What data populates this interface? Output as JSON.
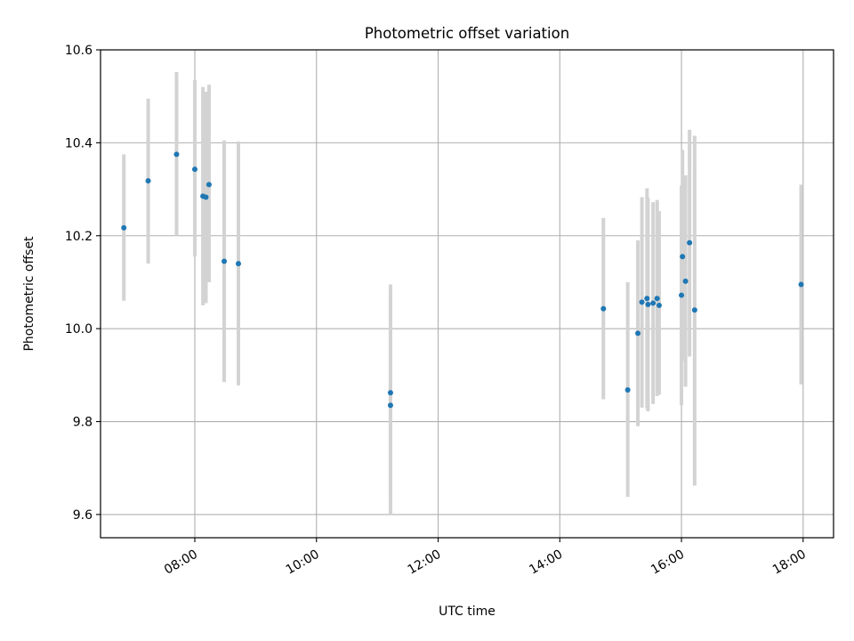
{
  "chart_data": {
    "type": "scatter",
    "title": "Photometric offset variation",
    "xlabel": "UTC time",
    "ylabel": "Photometric offset",
    "x_ticks": [
      "08:00",
      "10:00",
      "12:00",
      "14:00",
      "16:00",
      "18:00"
    ],
    "y_ticks": [
      "9.6",
      "9.8",
      "10.0",
      "10.2",
      "10.4",
      "10.6"
    ],
    "xlim": [
      "06:27",
      "18:30"
    ],
    "ylim": [
      9.55,
      10.6
    ],
    "grid": true,
    "legend": "none",
    "colors": {
      "points": "#1f77b4",
      "error_bars": "#d3d3d3",
      "grid": "#b0b0b0"
    },
    "series": [
      {
        "points": [
          {
            "x": "06:50",
            "y": 10.217,
            "lo": 10.06,
            "hi": 10.375
          },
          {
            "x": "07:14",
            "y": 10.318,
            "lo": 10.14,
            "hi": 10.495
          },
          {
            "x": "07:42",
            "y": 10.375,
            "lo": 10.2,
            "hi": 10.552
          },
          {
            "x": "08:00",
            "y": 10.343,
            "lo": 10.155,
            "hi": 10.535
          },
          {
            "x": "08:08",
            "y": 10.285,
            "lo": 10.05,
            "hi": 10.52
          },
          {
            "x": "08:11",
            "y": 10.283,
            "lo": 10.055,
            "hi": 10.51
          },
          {
            "x": "08:14",
            "y": 10.31,
            "lo": 10.1,
            "hi": 10.525
          },
          {
            "x": "08:29",
            "y": 10.145,
            "lo": 9.885,
            "hi": 10.405
          },
          {
            "x": "08:43",
            "y": 10.14,
            "lo": 9.878,
            "hi": 10.403
          },
          {
            "x": "11:13",
            "y": 9.862,
            "lo": 9.63,
            "hi": 10.095
          },
          {
            "x": "11:13",
            "y": 9.835,
            "lo": 9.6,
            "hi": 10.07
          },
          {
            "x": "14:43",
            "y": 10.043,
            "lo": 9.848,
            "hi": 10.238
          },
          {
            "x": "15:07",
            "y": 9.868,
            "lo": 9.638,
            "hi": 10.1
          },
          {
            "x": "15:17",
            "y": 9.99,
            "lo": 9.79,
            "hi": 10.19
          },
          {
            "x": "15:21",
            "y": 10.057,
            "lo": 9.83,
            "hi": 10.283
          },
          {
            "x": "15:26",
            "y": 10.065,
            "lo": 9.828,
            "hi": 10.302
          },
          {
            "x": "15:27",
            "y": 10.052,
            "lo": 9.822,
            "hi": 10.282
          },
          {
            "x": "15:32",
            "y": 10.055,
            "lo": 9.838,
            "hi": 10.272
          },
          {
            "x": "15:36",
            "y": 10.065,
            "lo": 9.855,
            "hi": 10.277
          },
          {
            "x": "15:38",
            "y": 10.05,
            "lo": 9.858,
            "hi": 10.253
          },
          {
            "x": "16:00",
            "y": 10.072,
            "lo": 9.835,
            "hi": 10.308
          },
          {
            "x": "16:01",
            "y": 10.155,
            "lo": 9.93,
            "hi": 10.385
          },
          {
            "x": "16:04",
            "y": 10.102,
            "lo": 9.875,
            "hi": 10.33
          },
          {
            "x": "16:08",
            "y": 10.185,
            "lo": 9.94,
            "hi": 10.428
          },
          {
            "x": "16:13",
            "y": 10.04,
            "lo": 9.662,
            "hi": 10.415
          },
          {
            "x": "17:58",
            "y": 10.095,
            "lo": 9.88,
            "hi": 10.31
          }
        ]
      }
    ]
  }
}
